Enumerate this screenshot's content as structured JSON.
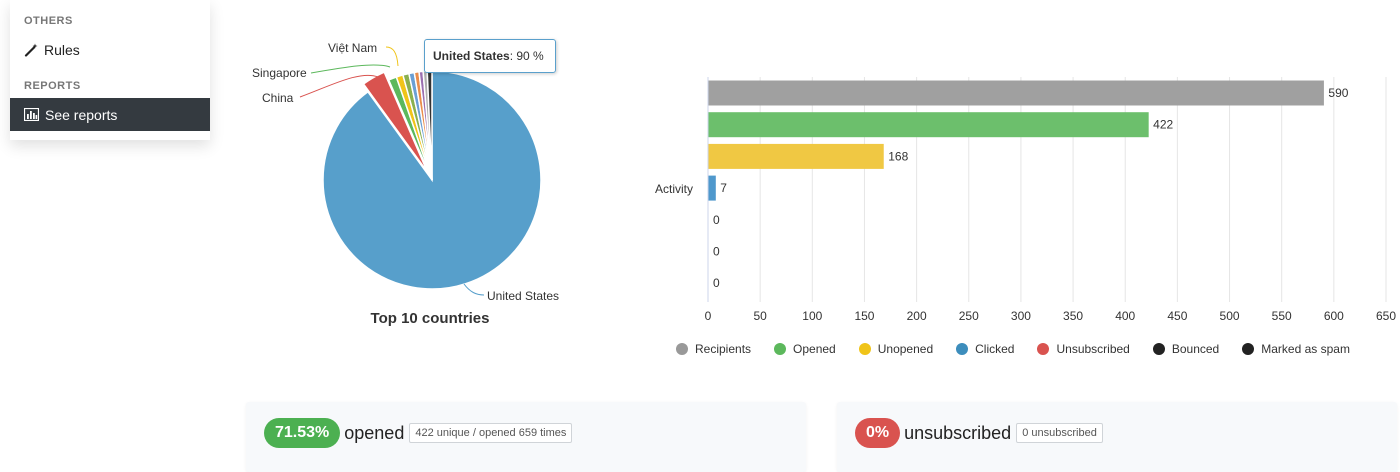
{
  "sidebar": {
    "others_heading": "OTHERS",
    "rules_label": "Rules",
    "reports_heading": "REPORTS",
    "see_reports_label": "See reports"
  },
  "pie_chart": {
    "title": "Top 10 countries",
    "tooltip": {
      "country": "United States",
      "value": ": 90 %"
    },
    "labels": {
      "vietnam": "Việt Nam",
      "singapore": "Singapore",
      "china": "China",
      "united_states": "United States"
    }
  },
  "chart_data": [
    {
      "type": "pie",
      "title": "Top 10 countries",
      "slices": [
        {
          "label": "United States",
          "value": 90,
          "color": "#579fcb"
        },
        {
          "label": "China",
          "value": 3.5,
          "color": "#d9534f"
        },
        {
          "label": "Singapore",
          "value": 1.2,
          "color": "#5cb85c"
        },
        {
          "label": "Việt Nam",
          "value": 1.0,
          "color": "#f0c419"
        },
        {
          "label": "",
          "value": 0.9,
          "color": "#8ab04f"
        },
        {
          "label": "",
          "value": 0.8,
          "color": "#6a9fd4"
        },
        {
          "label": "",
          "value": 0.7,
          "color": "#e98d4b"
        },
        {
          "label": "",
          "value": 0.6,
          "color": "#9b6fb0"
        },
        {
          "label": "",
          "value": 0.6,
          "color": "#b0b0b0"
        },
        {
          "label": "",
          "value": 0.7,
          "color": "#333333"
        }
      ],
      "unit": "%"
    },
    {
      "type": "bar",
      "orientation": "horizontal",
      "category": "Activity",
      "series": [
        {
          "name": "Recipients",
          "value": 590,
          "color": "#a0a0a0"
        },
        {
          "name": "Opened",
          "value": 422,
          "color": "#6cbf6c"
        },
        {
          "name": "Unopened",
          "value": 168,
          "color": "#f0c843"
        },
        {
          "name": "Clicked",
          "value": 7,
          "color": "#4f98cc"
        },
        {
          "name": "Unsubscribed",
          "value": 0,
          "color": "#d9534f"
        },
        {
          "name": "Bounced",
          "value": 0,
          "color": "#2b2b2b"
        },
        {
          "name": "Marked as spam",
          "value": 0,
          "color": "#2b2b2b"
        }
      ],
      "xlim": [
        0,
        650
      ],
      "xticks": [
        0,
        50,
        100,
        150,
        200,
        250,
        300,
        350,
        400,
        450,
        500,
        550,
        600,
        650
      ],
      "grid": true,
      "legend": "bottom"
    }
  ],
  "bar_chart": {
    "category_label": "Activity",
    "legend": [
      {
        "label": "Recipients",
        "color": "#999999"
      },
      {
        "label": "Opened",
        "color": "#5cb85c"
      },
      {
        "label": "Unopened",
        "color": "#f0c419"
      },
      {
        "label": "Clicked",
        "color": "#3c8dbc"
      },
      {
        "label": "Unsubscribed",
        "color": "#d9534f"
      },
      {
        "label": "Bounced",
        "color": "#222222"
      },
      {
        "label": "Marked as spam",
        "color": "#222222"
      }
    ]
  },
  "cards": {
    "opened": {
      "percent": "71.53%",
      "label": "opened",
      "detail": "422 unique / opened 659 times",
      "color": "#4cb051"
    },
    "unsubscribed": {
      "percent": "0%",
      "label": "unsubscribed",
      "detail": "0 unsubscribed",
      "color": "#d9534f"
    }
  }
}
